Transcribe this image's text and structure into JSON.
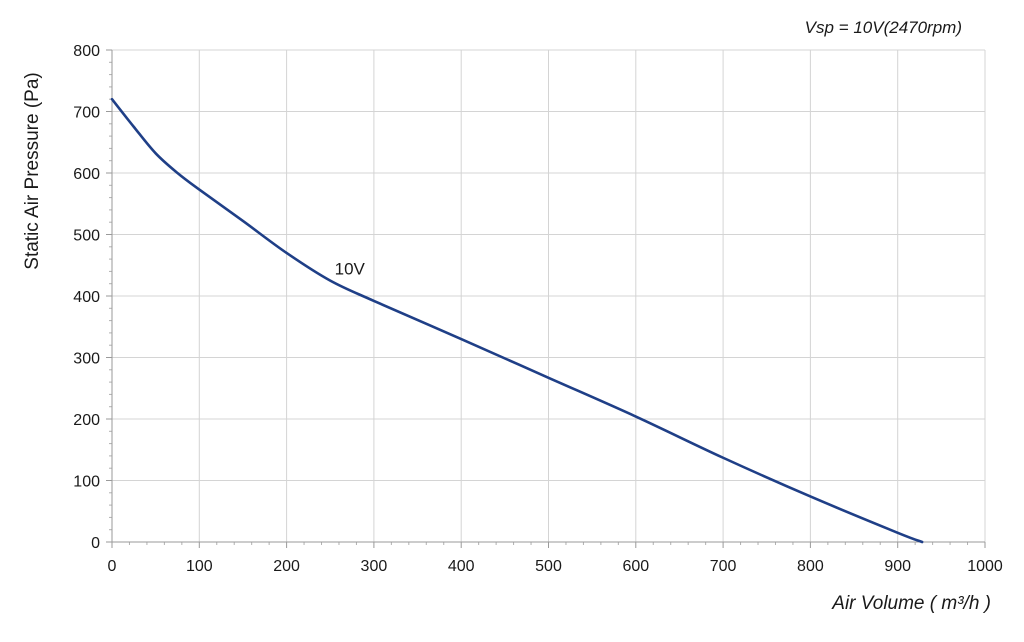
{
  "chart_data": {
    "type": "line",
    "title": "Vsp = 10V(2470rpm)",
    "xlabel": "Air Volume ( m³/h )",
    "ylabel": "Static Air Pressure  (Pa)",
    "xlim": [
      0,
      1000
    ],
    "ylim": [
      0,
      800
    ],
    "xticks": [
      0,
      100,
      200,
      300,
      400,
      500,
      600,
      700,
      800,
      900,
      1000
    ],
    "yticks": [
      0,
      100,
      200,
      300,
      400,
      500,
      600,
      700,
      800
    ],
    "grid": true,
    "legend": "none",
    "series": [
      {
        "name": "10V",
        "color": "#1f3f87",
        "x": [
          0,
          25,
          50,
          75,
          100,
          150,
          200,
          250,
          300,
          400,
          500,
          600,
          700,
          800,
          900,
          928
        ],
        "y": [
          720,
          675,
          632,
          600,
          573,
          522,
          470,
          425,
          392,
          330,
          267,
          204,
          137,
          74,
          15,
          0
        ]
      }
    ],
    "annotations": [
      {
        "text": "10V",
        "x": 255,
        "y": 445
      }
    ]
  }
}
